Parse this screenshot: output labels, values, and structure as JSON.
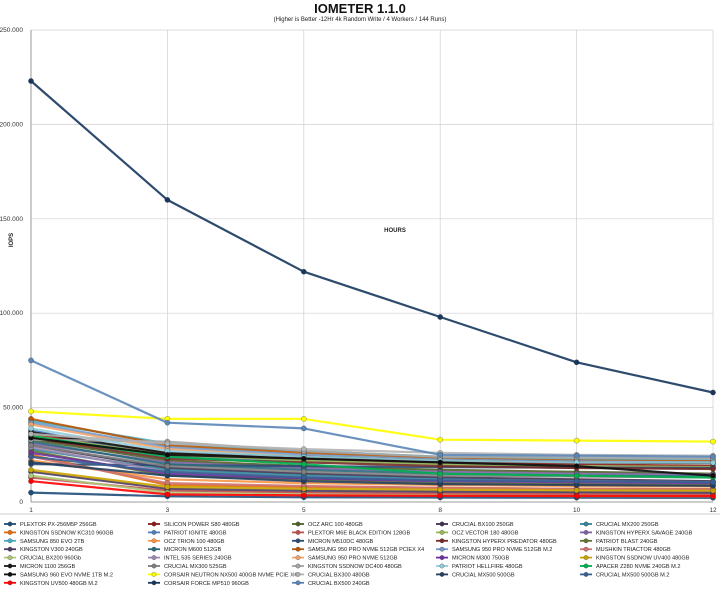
{
  "chart_data": {
    "type": "line",
    "title": "IOMETER 1.1.0",
    "subtitle": "(Higher is Better -12Hr 4k Random Write / 4 Workers / 144 Runs)",
    "xlabel": "HOURS",
    "ylabel": "IOPS",
    "x": [
      1,
      3,
      5,
      8,
      10,
      12
    ],
    "x_tick_labels": [
      "1",
      "3",
      "5",
      "8",
      "10",
      "12"
    ],
    "ylim": [
      0,
      250000
    ],
    "y_tick_labels": [
      "0",
      "50.000",
      "100.000",
      "150.000",
      "200.000",
      "250.000"
    ],
    "y_ticks": [
      0,
      50000,
      100000,
      150000,
      200000,
      250000
    ],
    "grid": true,
    "legend_position": "bottom",
    "series": [
      {
        "name": "PLEXTOR PX-256M5P 256GB",
        "color": "#1f4e79",
        "values": [
          5000,
          3000,
          2500,
          2400,
          2300,
          2200
        ]
      },
      {
        "name": "SILICON POWER S80 480GB",
        "color": "#8b1a1a",
        "values": [
          36000,
          26000,
          23000,
          21000,
          20000,
          19000
        ]
      },
      {
        "name": "OCZ ARC 100 480GB",
        "color": "#4f6228",
        "values": [
          33000,
          22000,
          19000,
          17000,
          16000,
          15000
        ]
      },
      {
        "name": "CRUCIAL BX100 250GB",
        "color": "#3f3151",
        "values": [
          30000,
          18000,
          15000,
          13000,
          12000,
          11000
        ]
      },
      {
        "name": "CRUCIAL MX200 250GB",
        "color": "#31859c",
        "values": [
          28000,
          17000,
          14000,
          12000,
          11000,
          10500
        ]
      },
      {
        "name": "KINGSTON SSDNOW KC310 960GB",
        "color": "#e46c0a",
        "values": [
          25000,
          9000,
          8000,
          7500,
          7000,
          6800
        ]
      },
      {
        "name": "PATRIOT IGNITE 480GB",
        "color": "#4f81bd",
        "values": [
          38000,
          24000,
          22000,
          20000,
          19000,
          18000
        ]
      },
      {
        "name": "PLEXTOR M6E BLACK EDITION 128GB",
        "color": "#c0504d",
        "values": [
          13000,
          6000,
          5000,
          4500,
          4300,
          4100
        ]
      },
      {
        "name": "OCZ VECTOR 180 480GB",
        "color": "#9bbb59",
        "values": [
          35000,
          25000,
          22000,
          20000,
          19000,
          18500
        ]
      },
      {
        "name": "KINGSTON HYPERX SAVAGE 240GB",
        "color": "#8064a2",
        "values": [
          31000,
          21000,
          18000,
          16000,
          15000,
          14500
        ]
      },
      {
        "name": "SAMSUNG 850 EVO 2TB",
        "color": "#4bacc6",
        "values": [
          43000,
          31000,
          27000,
          24000,
          23000,
          22500
        ]
      },
      {
        "name": "OCZ TRION 100 480GB",
        "color": "#f79646",
        "values": [
          22000,
          12000,
          10000,
          9000,
          8500,
          8200
        ]
      },
      {
        "name": "MICRON M510DC 480GB",
        "color": "#2c4d75",
        "values": [
          20000,
          19500,
          19000,
          18500,
          18200,
          18000
        ]
      },
      {
        "name": "KINGSTON HYPERX PREDATOR 480GB",
        "color": "#772c2a",
        "values": [
          34000,
          23000,
          21000,
          19000,
          18000,
          17500
        ]
      },
      {
        "name": "PATRIOT BLAST 240GB",
        "color": "#5f7530",
        "values": [
          27000,
          14000,
          12000,
          10000,
          9500,
          9000
        ]
      },
      {
        "name": "KINGSTON V300 240GB",
        "color": "#4d3b62",
        "values": [
          16000,
          7000,
          6000,
          5500,
          5200,
          5000
        ]
      },
      {
        "name": "MICRON M600 512GB",
        "color": "#276a7c",
        "values": [
          32000,
          20000,
          17000,
          15000,
          14000,
          13500
        ]
      },
      {
        "name": "SAMSUNG 950 PRO NVME 512GB PCIEX X4",
        "color": "#b65708",
        "values": [
          44000,
          30000,
          26000,
          23000,
          22000,
          21500
        ]
      },
      {
        "name": "SAMSUNG 950 PRO NVME 512GB M.2",
        "color": "#729aca",
        "values": [
          42000,
          29000,
          25000,
          22500,
          21500,
          21000
        ]
      },
      {
        "name": "MUSHKIN TRIACTOR 480GB",
        "color": "#cd7371",
        "values": [
          24000,
          10000,
          8500,
          7500,
          7000,
          6800
        ]
      },
      {
        "name": "CRUCIAL BX200 960Gb",
        "color": "#afc97a",
        "values": [
          14000,
          5000,
          4000,
          3500,
          3200,
          3000
        ]
      },
      {
        "name": "INTEL 535 SERIES 240GB",
        "color": "#a18ab4",
        "values": [
          29000,
          16000,
          13000,
          11500,
          11000,
          10500
        ]
      },
      {
        "name": "SAMSUNG 950 PRO NVME 512GB",
        "color": "#f1a46b",
        "values": [
          41000,
          28000,
          24000,
          22000,
          21000,
          20500
        ]
      },
      {
        "name": "MICRON M300 750GB",
        "color": "#7030a0",
        "values": [
          26000,
          15000,
          12500,
          11000,
          10500,
          10000
        ]
      },
      {
        "name": "KINGSTON SSDNOW UV400 480GB",
        "color": "#c9a400",
        "values": [
          17000,
          8000,
          7000,
          6500,
          6200,
          6000
        ]
      },
      {
        "name": "MICRON 1100 256GB",
        "color": "#1a1a1a",
        "values": [
          37000,
          26000,
          24000,
          22000,
          21000,
          20500
        ]
      },
      {
        "name": "CRUCIAL MX300 525GB",
        "color": "#7f7f7f",
        "values": [
          30000,
          19000,
          16000,
          14000,
          13500,
          13000
        ]
      },
      {
        "name": "KINGSTON SSDNOW DC400 480GB",
        "color": "#a6a6a6",
        "values": [
          33000,
          32000,
          27000,
          24000,
          23500,
          23000
        ]
      },
      {
        "name": "PATRIOT HELLFIRE 480GB",
        "color": "#92cddc",
        "values": [
          39000,
          27000,
          24000,
          22000,
          21000,
          20800
        ]
      },
      {
        "name": "APACER Z280 NVME 240GB M.2",
        "color": "#00b050",
        "values": [
          35000,
          24000,
          20000,
          15000,
          14000,
          13000
        ]
      },
      {
        "name": "SAMSUNG 960 EVO NVME 1TB M.2",
        "color": "#0d0d0d",
        "values": [
          34000,
          25000,
          23000,
          21000,
          19000,
          14000
        ]
      },
      {
        "name": "CORSAIR NEUTRON NX500 400GB NVME PCIE X4",
        "color": "#ffff00",
        "values": [
          48000,
          44000,
          44000,
          33000,
          32500,
          32000
        ]
      },
      {
        "name": "CRUCIAL BX300 480GB",
        "color": "#b3b3b3",
        "values": [
          36000,
          31000,
          28000,
          26000,
          25000,
          24500
        ]
      },
      {
        "name": "CRUCIAL MX500 500GB",
        "color": "#244061",
        "values": [
          21000,
          14000,
          11000,
          9500,
          9000,
          8600
        ]
      },
      {
        "name": "CRUCIAL MX500 500GB M.2",
        "color": "#366092",
        "values": [
          24000,
          16000,
          13000,
          11500,
          11000,
          10500
        ]
      },
      {
        "name": "KINGSTON UV500 480GB M.2",
        "color": "#ff0000",
        "values": [
          11000,
          4000,
          3500,
          3300,
          3200,
          3100
        ]
      },
      {
        "name": "CORSAIR FORCE MP510 960GB",
        "color": "#17375e",
        "values": [
          223000,
          160000,
          122000,
          98000,
          74000,
          58000
        ]
      },
      {
        "name": "CRUCIAL BX500 240GB",
        "color": "#5b86b8",
        "values": [
          75000,
          42000,
          39000,
          25000,
          24500,
          24000
        ]
      }
    ]
  }
}
